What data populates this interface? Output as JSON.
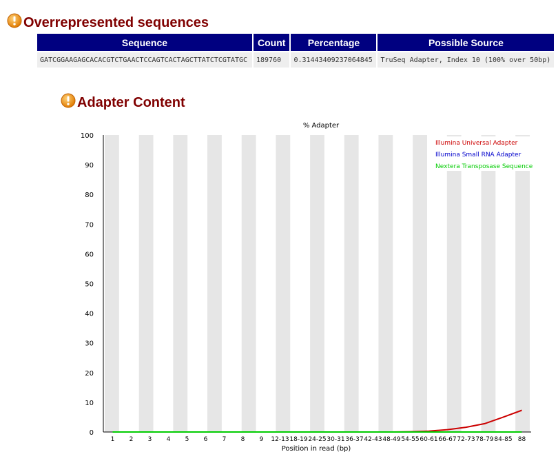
{
  "overrepresented": {
    "title": "Overrepresented sequences",
    "headers": [
      "Sequence",
      "Count",
      "Percentage",
      "Possible Source"
    ],
    "rows": [
      [
        "GATCGGAAGAGCACACGTCTGAACTCCAGTCACTAGCTTATCTCGTATGC",
        "189760",
        "0.31443409237064845",
        "TruSeq Adapter, Index 10 (100% over 50bp)"
      ]
    ]
  },
  "adapter": {
    "title": "Adapter Content"
  },
  "colors": {
    "header_bg": "#000080",
    "title": "#800000",
    "stripe": "#e6e6e6",
    "illumina_universal": "#cc0000",
    "illumina_small_rna": "#0000cc",
    "nextera": "#00cc00"
  },
  "chart_data": {
    "type": "line",
    "title": "% Adapter",
    "xlabel": "Position in read (bp)",
    "ylabel": "",
    "ylim": [
      0,
      100
    ],
    "yticks": [
      0,
      10,
      20,
      30,
      40,
      50,
      60,
      70,
      80,
      90,
      100
    ],
    "categories": [
      "1",
      "2",
      "3",
      "4",
      "5",
      "6",
      "7",
      "8",
      "9",
      "12-13",
      "18-19",
      "24-25",
      "30-31",
      "36-37",
      "42-43",
      "48-49",
      "54-55",
      "60-61",
      "66-67",
      "72-73",
      "78-79",
      "84-85",
      "88"
    ],
    "legend_position": "top-right",
    "series": [
      {
        "name": "Illumina Universal Adapter",
        "color": "#cc0000",
        "values": [
          0,
          0,
          0,
          0,
          0,
          0,
          0,
          0,
          0,
          0,
          0,
          0,
          0,
          0,
          0,
          0,
          0.1,
          0.3,
          0.8,
          1.6,
          2.8,
          5.0,
          7.3
        ]
      },
      {
        "name": "Illumina Small RNA Adapter",
        "color": "#0000cc",
        "values": [
          0,
          0,
          0,
          0,
          0,
          0,
          0,
          0,
          0,
          0,
          0,
          0,
          0,
          0,
          0,
          0,
          0,
          0,
          0,
          0,
          0,
          0,
          0
        ]
      },
      {
        "name": "Nextera Transposase Sequence",
        "color": "#00cc00",
        "values": [
          0,
          0,
          0,
          0,
          0,
          0,
          0,
          0,
          0,
          0,
          0,
          0,
          0,
          0,
          0,
          0,
          0,
          0,
          0,
          0,
          0,
          0,
          0
        ]
      }
    ]
  }
}
